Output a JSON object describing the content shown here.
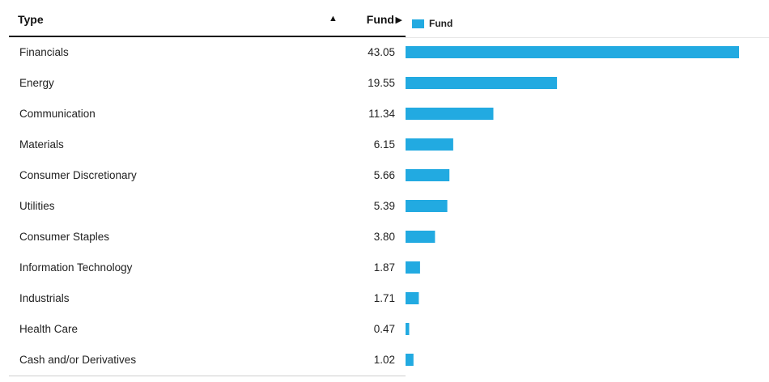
{
  "table": {
    "header": {
      "type_label": "Type",
      "sort_indicator": "▲",
      "fund_label": "Fund",
      "fund_arrow": "▶"
    }
  },
  "colors": {
    "bar": "#22aae1"
  },
  "chart_data": {
    "type": "bar",
    "orientation": "horizontal",
    "categories": [
      "Financials",
      "Energy",
      "Communication",
      "Materials",
      "Consumer Discretionary",
      "Utilities",
      "Consumer Staples",
      "Information Technology",
      "Industrials",
      "Health Care",
      "Cash and/or Derivatives"
    ],
    "series": [
      {
        "name": "Fund",
        "values": [
          43.05,
          19.55,
          11.34,
          6.15,
          5.66,
          5.39,
          3.8,
          1.87,
          1.71,
          0.47,
          1.02
        ],
        "labels": [
          "43.05",
          "19.55",
          "11.34",
          "6.15",
          "5.66",
          "5.39",
          "3.80",
          "1.87",
          "1.71",
          "0.47",
          "1.02"
        ]
      }
    ],
    "xlim": [
      0,
      45
    ],
    "legend": "top-left",
    "grid": false
  }
}
